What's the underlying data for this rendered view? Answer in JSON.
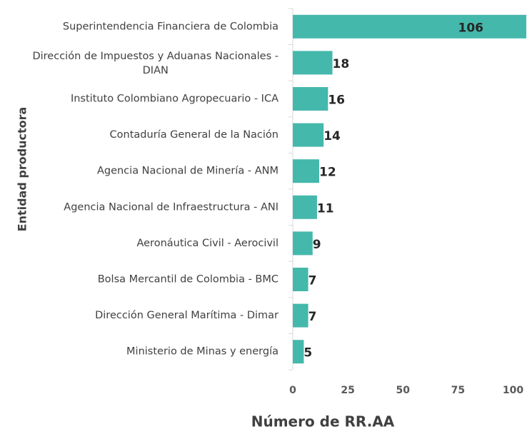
{
  "chart_data": {
    "type": "bar",
    "orientation": "horizontal",
    "x_label": "Número de RR.AA",
    "y_label": "Entidad productora",
    "categories": [
      "Superintendencia Financiera de Colombia",
      "Dirección de Impuestos y Aduanas Nacionales - DIAN",
      "Instituto Colombiano Agropecuario - ICA",
      "Contaduría General de la Nación",
      "Agencia Nacional de Minería - ANM",
      "Agencia Nacional de Infraestructura - ANI",
      "Aeronáutica Civil - Aerocivil",
      "Bolsa Mercantil de Colombia - BMC",
      "Dirección General Marítima - Dimar",
      "Ministerio de Minas y energía"
    ],
    "values": [
      106,
      18,
      16,
      14,
      12,
      11,
      9,
      7,
      7,
      5
    ],
    "color": "#45b8ac",
    "xlim": [
      0,
      106
    ],
    "xticks": [
      0,
      25,
      50,
      75,
      100
    ],
    "grid": false
  }
}
